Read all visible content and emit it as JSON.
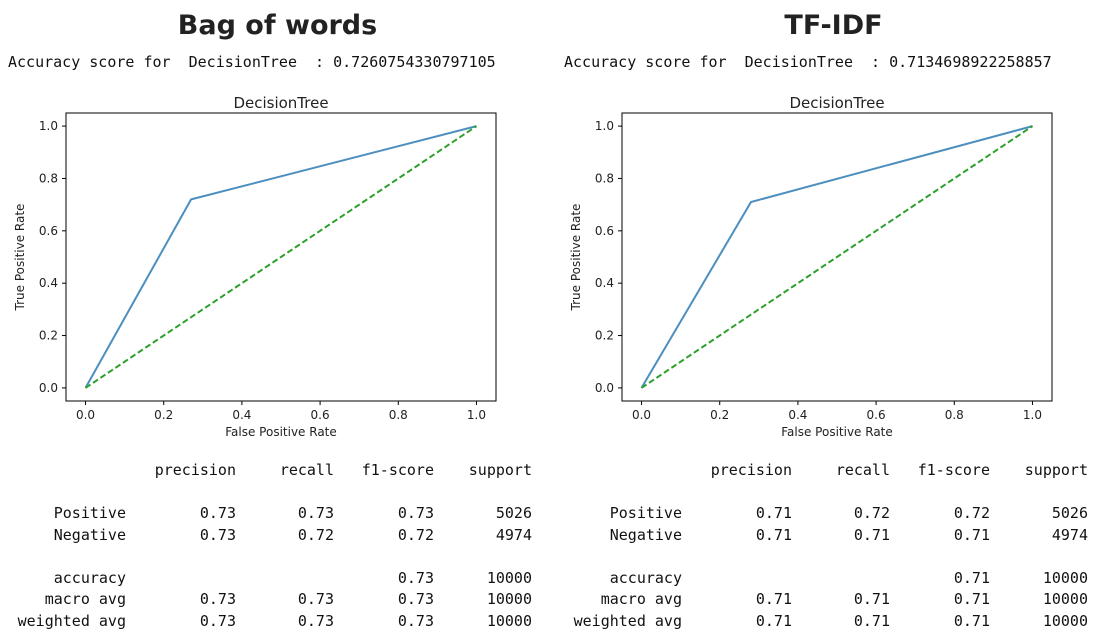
{
  "panels": [
    {
      "heading": "Bag of words",
      "accuracy_line": "Accuracy score for  DecisionTree  : 0.7260754330797105",
      "report": {
        "headers": [
          "",
          "precision",
          "recall",
          "f1-score",
          "support"
        ],
        "rows": [
          [
            "Positive",
            "0.73",
            "0.73",
            "0.73",
            "5026"
          ],
          [
            "Negative",
            "0.73",
            "0.72",
            "0.72",
            "4974"
          ],
          [
            "",
            "",
            "",
            "",
            ""
          ],
          [
            "accuracy",
            "",
            "",
            "0.73",
            "10000"
          ],
          [
            "macro avg",
            "0.73",
            "0.73",
            "0.73",
            "10000"
          ],
          [
            "weighted avg",
            "0.73",
            "0.73",
            "0.73",
            "10000"
          ]
        ]
      }
    },
    {
      "heading": "TF-IDF",
      "accuracy_line": "Accuracy score for  DecisionTree  : 0.7134698922258857",
      "report": {
        "headers": [
          "",
          "precision",
          "recall",
          "f1-score",
          "support"
        ],
        "rows": [
          [
            "Positive",
            "0.71",
            "0.72",
            "0.72",
            "5026"
          ],
          [
            "Negative",
            "0.71",
            "0.71",
            "0.71",
            "4974"
          ],
          [
            "",
            "",
            "",
            "",
            ""
          ],
          [
            "accuracy",
            "",
            "",
            "0.71",
            "10000"
          ],
          [
            "macro avg",
            "0.71",
            "0.71",
            "0.71",
            "10000"
          ],
          [
            "weighted avg",
            "0.71",
            "0.71",
            "0.71",
            "10000"
          ]
        ]
      }
    }
  ],
  "chart_data": [
    {
      "type": "line",
      "title": "DecisionTree",
      "xlabel": "False Positive Rate",
      "ylabel": "True Positive Rate",
      "xlim": [
        -0.05,
        1.05
      ],
      "ylim": [
        -0.05,
        1.05
      ],
      "xticks": [
        "0.0",
        "0.2",
        "0.4",
        "0.6",
        "0.8",
        "1.0"
      ],
      "yticks": [
        "0.0",
        "0.2",
        "0.4",
        "0.6",
        "0.8",
        "1.0"
      ],
      "grid": false,
      "series": [
        {
          "style": "solid",
          "color": "#4c8fbf",
          "x": [
            0,
            0.27,
            1
          ],
          "y": [
            0,
            0.72,
            1
          ]
        },
        {
          "style": "dashed",
          "color": "#2ca02c",
          "x": [
            0,
            1
          ],
          "y": [
            0,
            1
          ]
        }
      ]
    },
    {
      "type": "line",
      "title": "DecisionTree",
      "xlabel": "False Positive Rate",
      "ylabel": "True Positive Rate",
      "xlim": [
        -0.05,
        1.05
      ],
      "ylim": [
        -0.05,
        1.05
      ],
      "xticks": [
        "0.0",
        "0.2",
        "0.4",
        "0.6",
        "0.8",
        "1.0"
      ],
      "yticks": [
        "0.0",
        "0.2",
        "0.4",
        "0.6",
        "0.8",
        "1.0"
      ],
      "grid": false,
      "series": [
        {
          "style": "solid",
          "color": "#4c8fbf",
          "x": [
            0,
            0.28,
            1
          ],
          "y": [
            0,
            0.71,
            1
          ]
        },
        {
          "style": "dashed",
          "color": "#2ca02c",
          "x": [
            0,
            1
          ],
          "y": [
            0,
            1
          ]
        }
      ]
    }
  ]
}
